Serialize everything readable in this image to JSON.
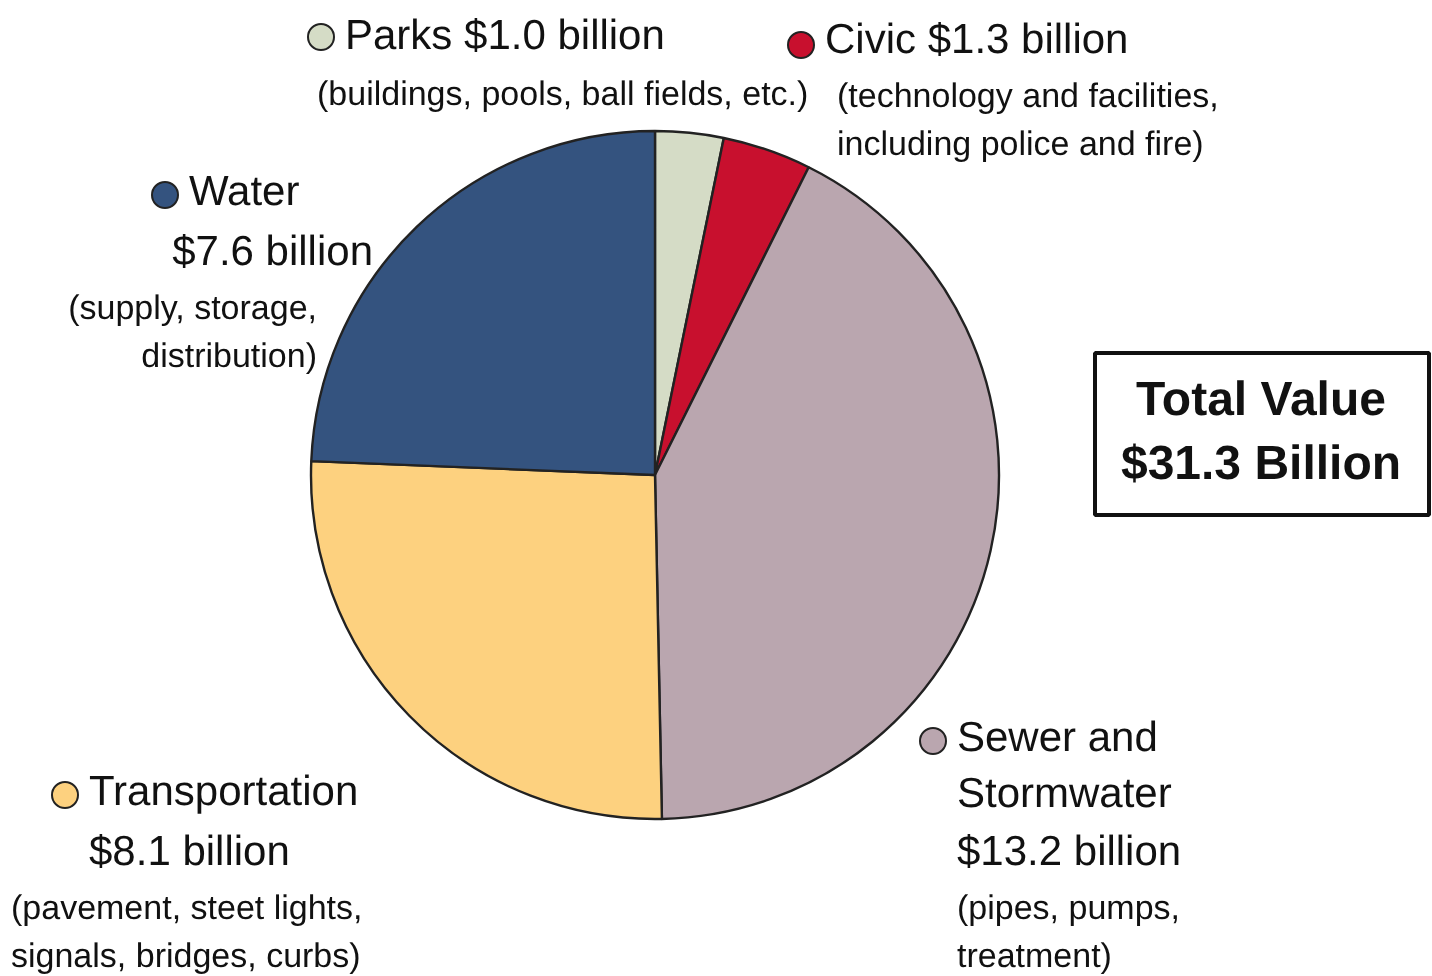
{
  "chart_data": {
    "type": "pie",
    "categories": [
      "Parks",
      "Civic",
      "Sewer and Stormwater",
      "Transportation",
      "Water"
    ],
    "values": [
      1.0,
      1.3,
      13.2,
      8.1,
      7.6
    ],
    "value_labels": [
      "$1.0 billion",
      "$1.3 billion",
      "$13.2 billion",
      "$8.1 billion",
      "$7.6 billion"
    ],
    "colors": [
      "#d5dcc6",
      "#c8102e",
      "#baa6af",
      "#fdd17f",
      "#34537f"
    ],
    "annotations": [
      "(buildings, pools, ball fields, etc.)",
      "(technology and facilities, including police and fire)",
      "(pipes, pumps, treatment)",
      "(pavement, steet lights, signals, bridges, curbs)",
      "(supply, storage, distribution)",
      "Total Value $31.3 Billion"
    ],
    "legend": "top left"
  }
}
